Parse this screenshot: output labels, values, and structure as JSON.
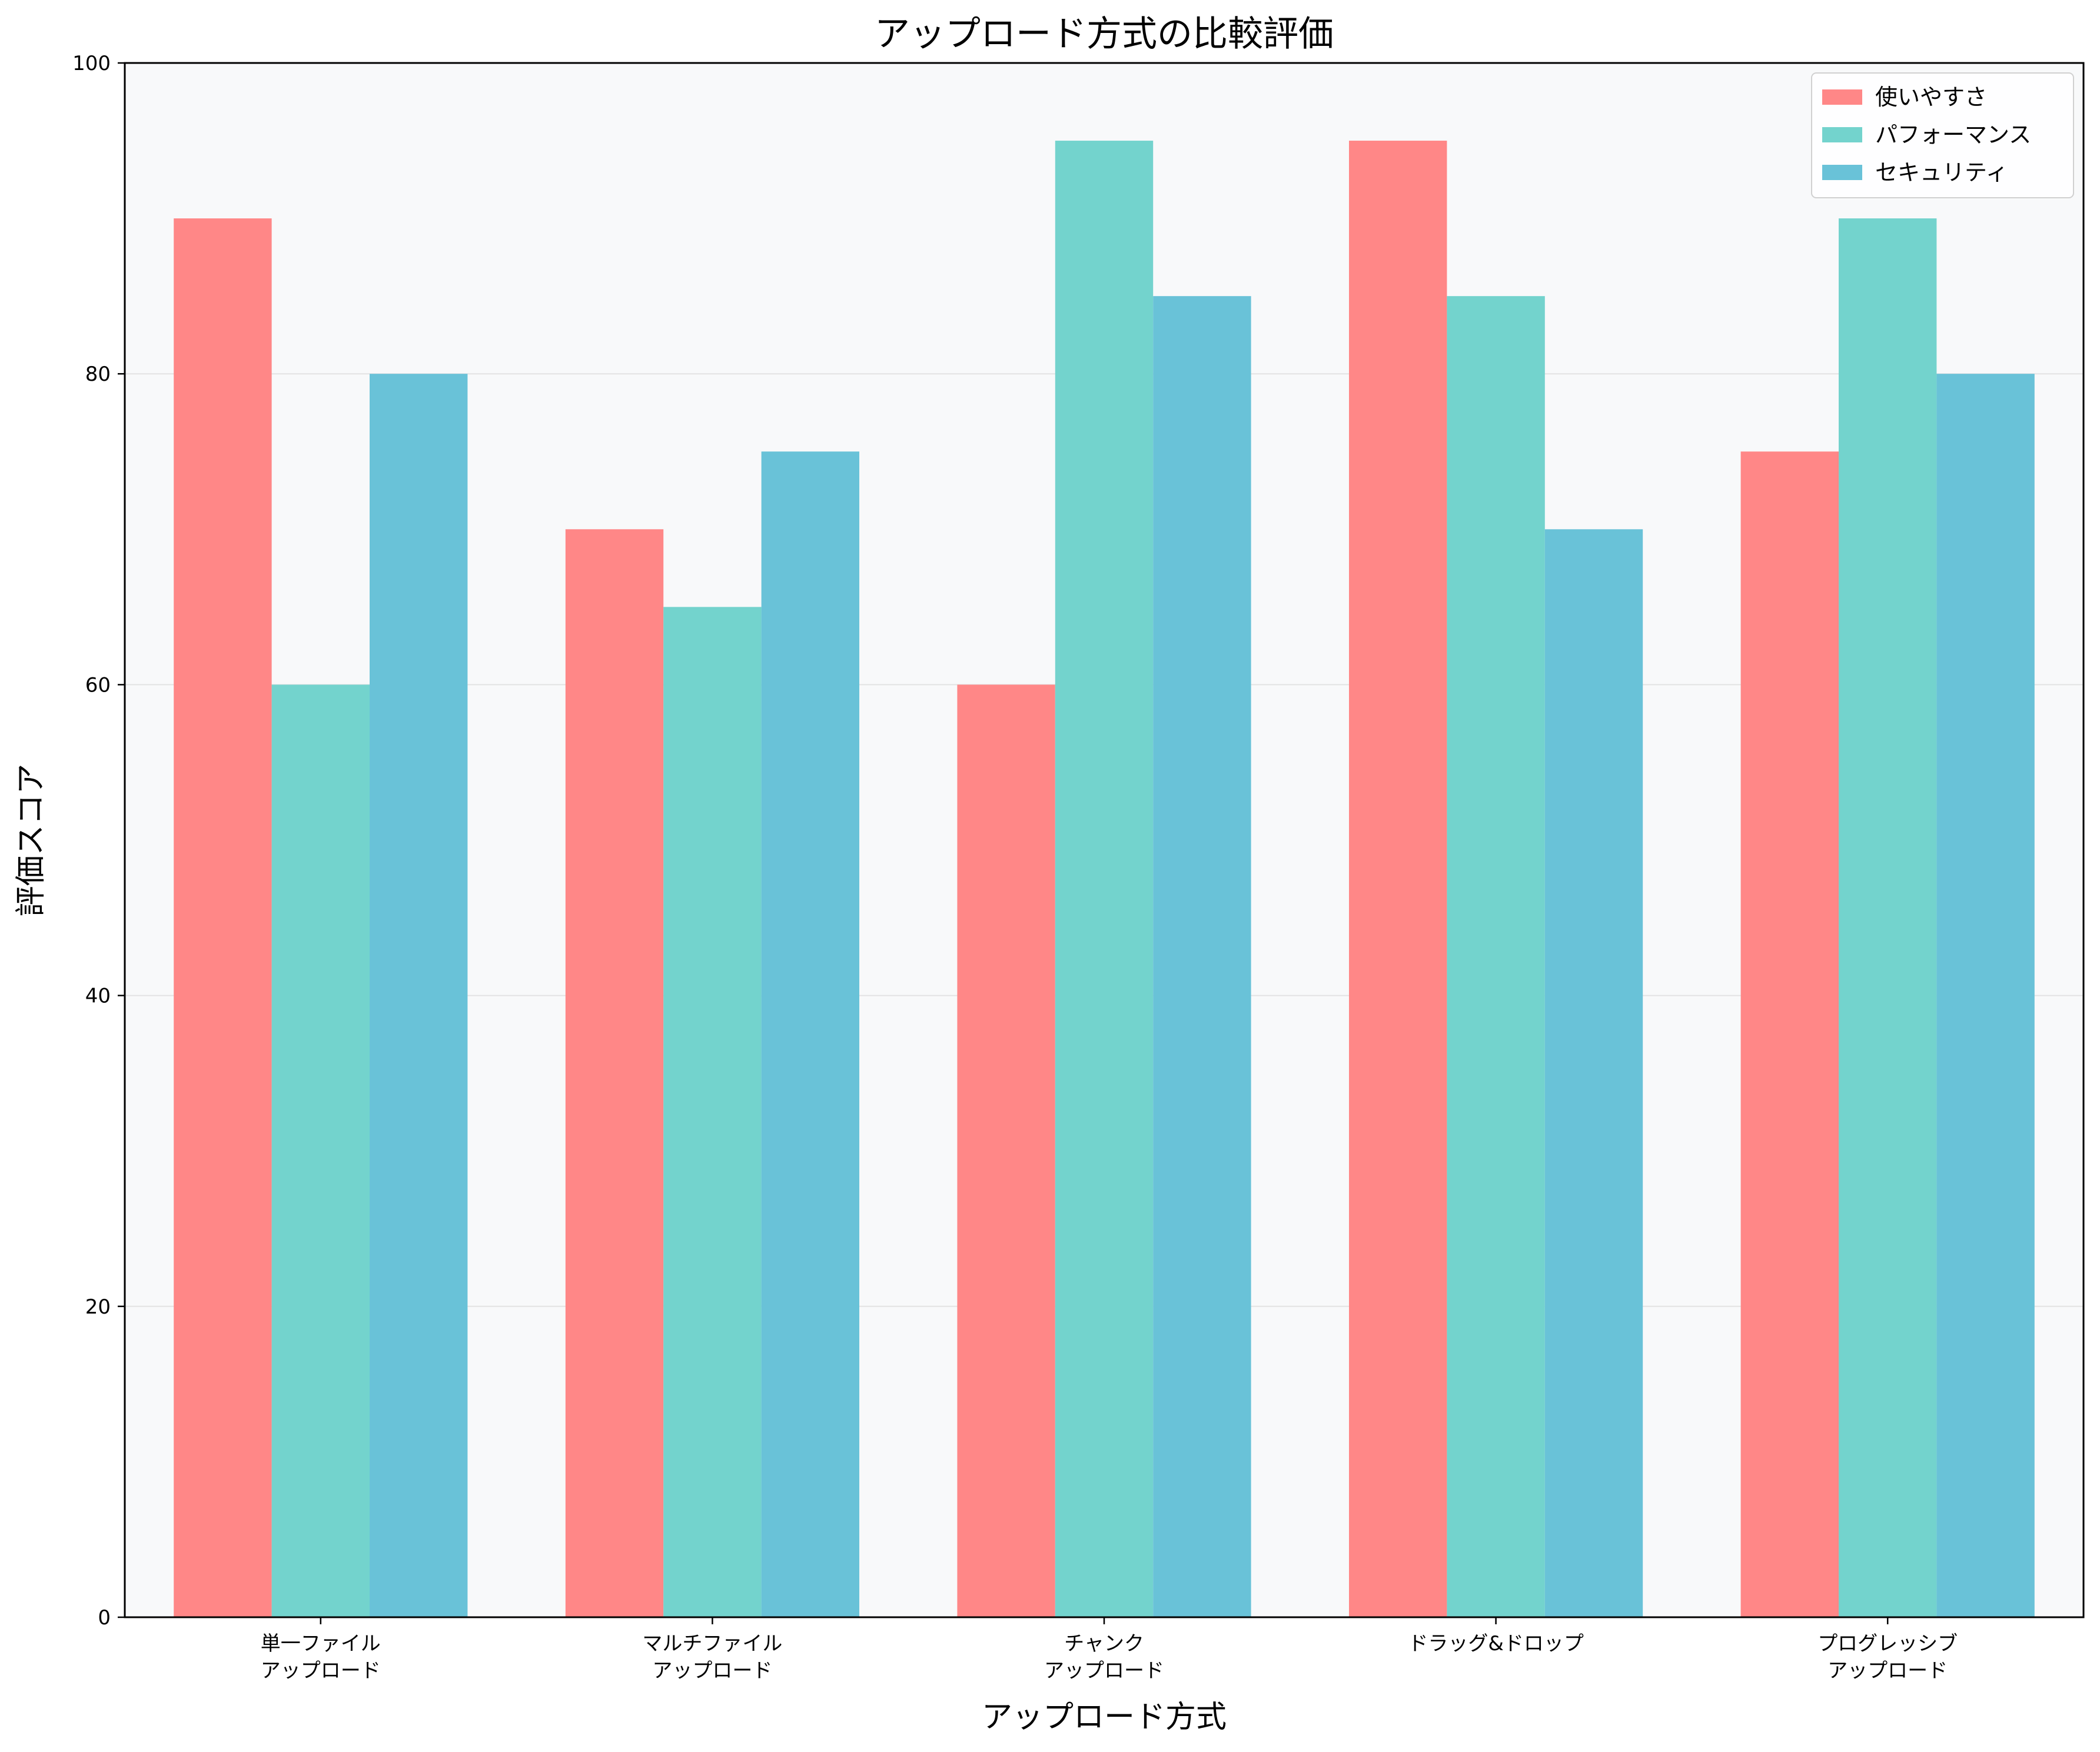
{
  "chart_data": {
    "type": "bar",
    "title": "アップロード方式の比較評価",
    "xlabel": "アップロード方式",
    "ylabel": "評価スコア",
    "categories": [
      [
        "単一ファイル",
        "アップロード"
      ],
      [
        "マルチファイル",
        "アップロード"
      ],
      [
        "チャンク",
        "アップロード"
      ],
      [
        "ドラッグ&ドロップ"
      ],
      [
        "プログレッシブ",
        "アップロード"
      ]
    ],
    "series": [
      {
        "name": "使いやすさ",
        "color": "#ff8787",
        "values": [
          90,
          70,
          60,
          95,
          75
        ]
      },
      {
        "name": "パフォーマンス",
        "color": "#73d3cd",
        "values": [
          60,
          65,
          95,
          85,
          90
        ]
      },
      {
        "name": "セキュリティ",
        "color": "#69c2d8",
        "values": [
          80,
          75,
          85,
          70,
          80
        ]
      }
    ],
    "ylim": [
      0,
      100
    ],
    "yticks": [
      0,
      20,
      40,
      60,
      80,
      100
    ],
    "grid": "horizontal",
    "legend": "top-right",
    "plot_background": "#f8f9fa"
  }
}
